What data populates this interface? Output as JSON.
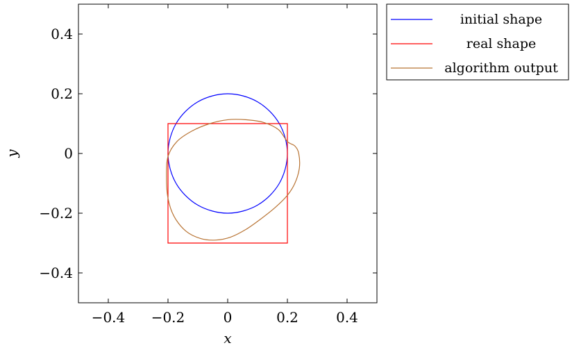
{
  "chart_data": {
    "type": "line",
    "title": "",
    "xlabel": "x",
    "ylabel": "y",
    "xlim": [
      -0.5,
      0.5
    ],
    "ylim": [
      -0.5,
      0.5
    ],
    "xticks": [
      -0.4,
      -0.2,
      0,
      0.2,
      0.4
    ],
    "yticks": [
      -0.4,
      -0.2,
      0,
      0.2,
      0.4
    ],
    "xtick_labels": [
      "−0.4",
      "−0.2",
      "0",
      "0.2",
      "0.4"
    ],
    "ytick_labels": [
      "−0.4",
      "−0.2",
      "0",
      "0.2",
      "0.4"
    ],
    "grid": false,
    "legend_position": "outside-top-right",
    "series": [
      {
        "name": "initial shape",
        "color": "#0000ff",
        "x": [
          0.2,
          0.173,
          0.1,
          0,
          -0.1,
          -0.173,
          -0.2,
          -0.173,
          -0.1,
          0,
          0.1,
          0.173,
          0.2
        ],
        "y": [
          0,
          0.1,
          0.173,
          0.2,
          0.173,
          0.1,
          0,
          -0.1,
          -0.173,
          -0.2,
          -0.173,
          -0.1,
          0
        ]
      },
      {
        "name": "real shape",
        "color": "#ff0000",
        "x": [
          -0.2,
          0.2,
          0.2,
          -0.2,
          -0.2
        ],
        "y": [
          0.1,
          0.1,
          -0.3,
          -0.3,
          0.1
        ]
      },
      {
        "name": "algorithm output",
        "color": "#b87333",
        "x": [
          0.2,
          0.17,
          0.12,
          0.06,
          0,
          -0.06,
          -0.12,
          -0.17,
          -0.2,
          -0.205,
          -0.2,
          -0.18,
          -0.14,
          -0.09,
          -0.04,
          0.01,
          0.06,
          0.11,
          0.16,
          0.2,
          0.225,
          0.24,
          0.238,
          0.225,
          0.2
        ],
        "y": [
          0.04,
          0.08,
          0.104,
          0.113,
          0.113,
          0.1,
          0.075,
          0.04,
          -0.01,
          -0.08,
          -0.15,
          -0.21,
          -0.26,
          -0.285,
          -0.29,
          -0.28,
          -0.255,
          -0.22,
          -0.18,
          -0.14,
          -0.1,
          -0.05,
          0,
          0.025,
          0.04
        ]
      }
    ]
  }
}
